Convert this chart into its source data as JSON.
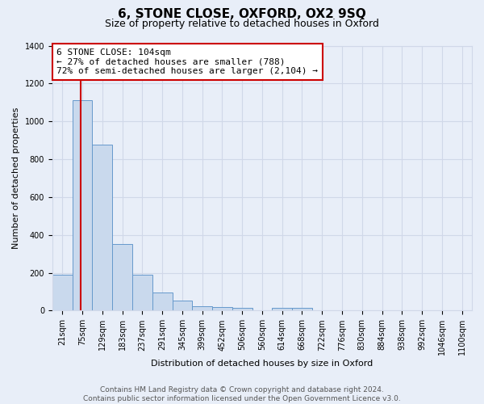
{
  "title": "6, STONE CLOSE, OXFORD, OX2 9SQ",
  "subtitle": "Size of property relative to detached houses in Oxford",
  "xlabel": "Distribution of detached houses by size in Oxford",
  "ylabel": "Number of detached properties",
  "bar_labels": [
    "21sqm",
    "75sqm",
    "129sqm",
    "183sqm",
    "237sqm",
    "291sqm",
    "345sqm",
    "399sqm",
    "452sqm",
    "506sqm",
    "560sqm",
    "614sqm",
    "668sqm",
    "722sqm",
    "776sqm",
    "830sqm",
    "884sqm",
    "938sqm",
    "992sqm",
    "1046sqm",
    "1100sqm"
  ],
  "bar_values": [
    190,
    1110,
    875,
    350,
    190,
    95,
    55,
    25,
    18,
    15,
    0,
    15,
    15,
    0,
    0,
    0,
    0,
    0,
    0,
    0,
    0
  ],
  "bar_color": "#c9d9ed",
  "bar_edge_color": "#6699cc",
  "vline_x": 1.4,
  "vline_color": "#cc0000",
  "annotation_title": "6 STONE CLOSE: 104sqm",
  "annotation_line1": "← 27% of detached houses are smaller (788)",
  "annotation_line2": "72% of semi-detached houses are larger (2,104) →",
  "annotation_box_color": "#ffffff",
  "annotation_box_edge": "#cc0000",
  "ylim": [
    0,
    1400
  ],
  "yticks": [
    0,
    200,
    400,
    600,
    800,
    1000,
    1200,
    1400
  ],
  "grid_color": "#d0d8e8",
  "bg_color": "#e8eef8",
  "footer1": "Contains HM Land Registry data © Crown copyright and database right 2024.",
  "footer2": "Contains public sector information licensed under the Open Government Licence v3.0.",
  "title_fontsize": 11,
  "subtitle_fontsize": 9,
  "axis_label_fontsize": 8,
  "tick_fontsize": 7,
  "footer_fontsize": 6.5,
  "annotation_fontsize": 8
}
